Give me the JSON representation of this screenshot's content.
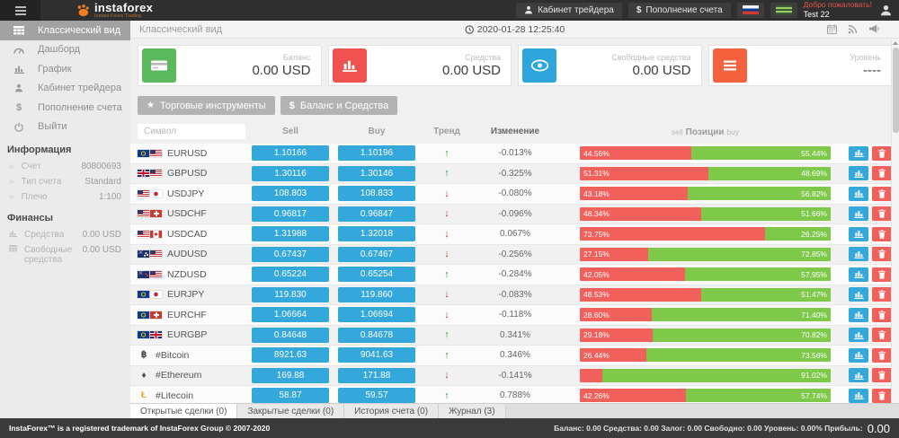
{
  "topbar": {
    "logo": "instaforex",
    "tagline": "Instant Forex Trading",
    "cabinet_label": "Кабинет трейдера",
    "deposit_prefix": "$",
    "deposit_label": "Пополнение счета",
    "welcome": "Добро пожаловать!",
    "username": "Test 22"
  },
  "sidebar": {
    "menu": [
      {
        "label": "Классический вид",
        "icon": "table-icon",
        "active": true
      },
      {
        "label": "Дашборд",
        "icon": "dashboard-icon",
        "active": false
      },
      {
        "label": "График",
        "icon": "chart-icon",
        "active": false
      },
      {
        "label": "Кабинет трейдера",
        "icon": "user-icon",
        "active": false
      },
      {
        "label": "Пополнение счета",
        "icon": "dollar-icon",
        "active": false
      },
      {
        "label": "Выйти",
        "icon": "power-icon",
        "active": false
      }
    ],
    "info_header": "Информация",
    "info": [
      {
        "label": "Счет",
        "value": "80800693"
      },
      {
        "label": "Тип счета",
        "value": "Standard"
      },
      {
        "label": "Плечо",
        "value": "1:100"
      }
    ],
    "finance_header": "Финансы",
    "finance": [
      {
        "label": "Средства",
        "value": "0.00 USD",
        "icon": "funds-icon"
      },
      {
        "label": "Свободные средства",
        "value": "0.00 USD",
        "icon": "free-funds-icon"
      }
    ]
  },
  "main": {
    "title": "Классический вид",
    "timestamp": "2020-01-28 12:25:40",
    "cards": [
      {
        "label": "Баланс",
        "value": "0.00 USD",
        "color": "#5cb85c",
        "icon": "credit-card-icon"
      },
      {
        "label": "Средства",
        "value": "0.00 USD",
        "color": "#f0524f",
        "icon": "bar-chart-icon"
      },
      {
        "label": "Свободные средства",
        "value": "0.00 USD",
        "color": "#2ea6dd",
        "icon": "eye-icon"
      },
      {
        "label": "Уровень",
        "value": "----",
        "color": "#f4613d",
        "icon": "list-icon"
      }
    ],
    "toolbar": [
      {
        "label": "Торговые инструменты",
        "icon": "star-icon"
      },
      {
        "label": "Баланс и Средства",
        "icon": "dollar-icon"
      }
    ],
    "table": {
      "symbol_placeholder": "Символ",
      "headers": {
        "sell": "Sell",
        "buy": "Buy",
        "trend": "Тренд",
        "change": "Изменение",
        "pos_sell": "sell",
        "pos_title": "Позиции",
        "pos_buy": "buy"
      },
      "rows": [
        {
          "symbol": "EURUSD",
          "flags": [
            "eu",
            "us"
          ],
          "sell": "1.10166",
          "buy": "1.10196",
          "trend": "up",
          "change": "-0.013%",
          "sell_val": 44.56,
          "sell_label": "44.56%",
          "buy_label": "55.44%"
        },
        {
          "symbol": "GBPUSD",
          "flags": [
            "gb",
            "us"
          ],
          "sell": "1.30116",
          "buy": "1.30146",
          "trend": "up",
          "change": "-0.325%",
          "sell_val": 51.31,
          "sell_label": "51.31%",
          "buy_label": "48.69%"
        },
        {
          "symbol": "USDJPY",
          "flags": [
            "us",
            "jp"
          ],
          "sell": "108.803",
          "buy": "108.833",
          "trend": "down",
          "change": "-0.080%",
          "sell_val": 43.18,
          "sell_label": "43.18%",
          "buy_label": "56.82%"
        },
        {
          "symbol": "USDCHF",
          "flags": [
            "us",
            "ch"
          ],
          "sell": "0.96817",
          "buy": "0.96847",
          "trend": "down",
          "change": "-0.096%",
          "sell_val": 48.34,
          "sell_label": "48.34%",
          "buy_label": "51.66%"
        },
        {
          "symbol": "USDCAD",
          "flags": [
            "us",
            "ca"
          ],
          "sell": "1.31988",
          "buy": "1.32018",
          "trend": "down",
          "change": "0.067%",
          "sell_val": 73.75,
          "sell_label": "73.75%",
          "buy_label": "26.25%"
        },
        {
          "symbol": "AUDUSD",
          "flags": [
            "au",
            "us"
          ],
          "sell": "0.67437",
          "buy": "0.67467",
          "trend": "down",
          "change": "-0.256%",
          "sell_val": 27.15,
          "sell_label": "27.15%",
          "buy_label": "72.85%"
        },
        {
          "symbol": "NZDUSD",
          "flags": [
            "nz",
            "us"
          ],
          "sell": "0.65224",
          "buy": "0.65254",
          "trend": "up",
          "change": "-0.284%",
          "sell_val": 42.05,
          "sell_label": "42.05%",
          "buy_label": "57.95%"
        },
        {
          "symbol": "EURJPY",
          "flags": [
            "eu",
            "jp"
          ],
          "sell": "119.830",
          "buy": "119.860",
          "trend": "down",
          "change": "-0.083%",
          "sell_val": 48.53,
          "sell_label": "48.53%",
          "buy_label": "51.47%"
        },
        {
          "symbol": "EURCHF",
          "flags": [
            "eu",
            "ch"
          ],
          "sell": "1.06664",
          "buy": "1.06694",
          "trend": "down",
          "change": "-0.118%",
          "sell_val": 28.6,
          "sell_label": "28.60%",
          "buy_label": "71.40%"
        },
        {
          "symbol": "EURGBP",
          "flags": [
            "eu",
            "gb"
          ],
          "sell": "0.84648",
          "buy": "0.84678",
          "trend": "up",
          "change": "0.341%",
          "sell_val": 29.18,
          "sell_label": "29.18%",
          "buy_label": "70.82%"
        },
        {
          "symbol": "#Bitcoin",
          "crypto": "฿",
          "crypto_color": "#3a3a3a",
          "sell": "8921.63",
          "buy": "9041.63",
          "trend": "up",
          "change": "0.346%",
          "sell_val": 26.44,
          "sell_label": "26.44%",
          "buy_label": "73.56%"
        },
        {
          "symbol": "#Ethereum",
          "crypto": "♦",
          "crypto_color": "#4a4a4a",
          "sell": "169.88",
          "buy": "171.88",
          "trend": "down",
          "change": "-0.141%",
          "sell_val": 8.98,
          "sell_label": "",
          "buy_label": "91.02%"
        },
        {
          "symbol": "#Litecoin",
          "crypto": "Ł",
          "crypto_color": "#f5a623",
          "sell": "58.87",
          "buy": "59.57",
          "trend": "up",
          "change": "0.788%",
          "sell_val": 42.26,
          "sell_label": "42.26%",
          "buy_label": "57.74%"
        }
      ],
      "partial_row": {
        "sell_val": 4,
        "sell_label": "",
        "buy_label": ""
      }
    },
    "tabs": [
      {
        "label": "Открытые сделки (0)",
        "active": true
      },
      {
        "label": "Закрытые сделки (0)",
        "active": false
      },
      {
        "label": "История счета (0)",
        "active": false
      },
      {
        "label": "Журнал (3)",
        "active": false
      }
    ]
  },
  "footer": {
    "left": "InstaForex™ is a registered trademark of InstaForex Group © 2007-2020",
    "stats": "Баланс: 0.00 Средства: 0.00 Залог: 0.00 Свободно: 0.00 Уровень: 0.00% Прибыль:",
    "profit": "0.00"
  }
}
